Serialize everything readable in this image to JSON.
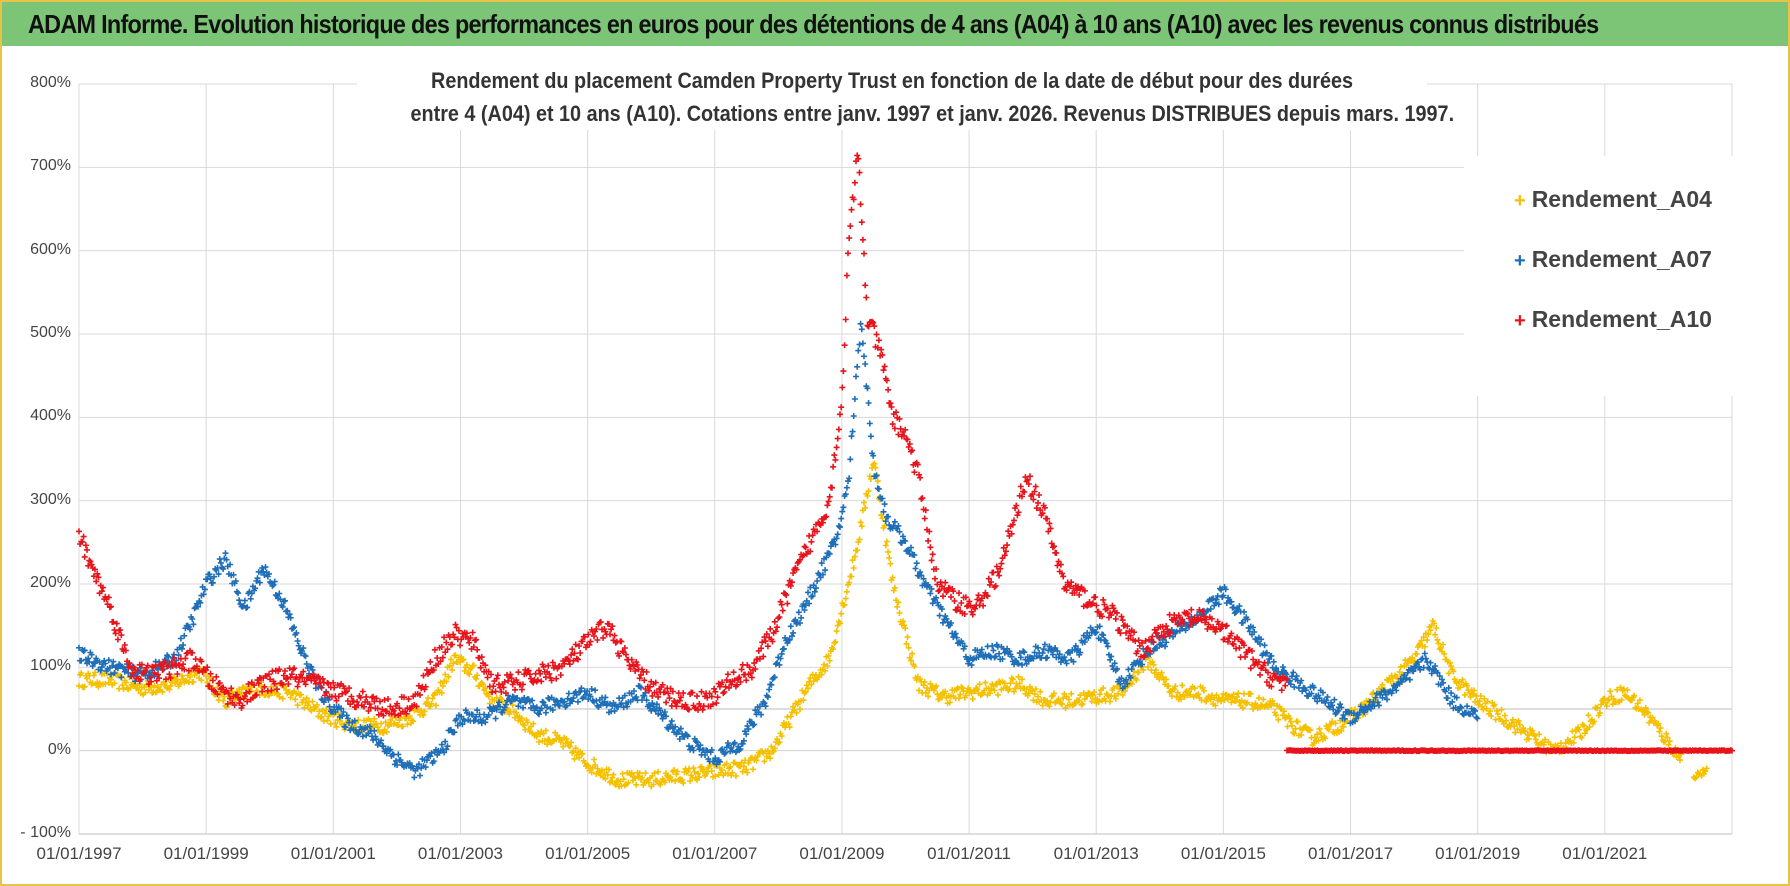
{
  "header": {
    "title": "ADAM Informe. Evolution historique des performances en euros pour des détentions de 4 ans (A04) à 10 ans (A10) avec les revenus connus distribués"
  },
  "chart_data": {
    "type": "scatter",
    "title_line1": "Rendement du placement Camden Property Trust en fonction de la date de début pour des durées",
    "title_line2": "entre 4 (A04) et 10 ans (A10).  Cotations entre janv. 1997 et janv. 2026. Revenus DISTRIBUES depuis mars. 1997.",
    "xlabel": "",
    "ylabel": "",
    "x_range": [
      1997.0,
      2023.0
    ],
    "ylim": [
      -100,
      800
    ],
    "y_ticks": [
      "- 100%",
      "0%",
      "100%",
      "200%",
      "300%",
      "400%",
      "500%",
      "600%",
      "700%",
      "800%"
    ],
    "y_tick_values": [
      -100,
      0,
      100,
      200,
      300,
      400,
      500,
      600,
      700,
      800
    ],
    "x_ticks": [
      "01/01/1997",
      "01/01/1999",
      "01/01/2001",
      "01/01/2003",
      "01/01/2005",
      "01/01/2007",
      "01/01/2009",
      "01/01/2011",
      "01/01/2013",
      "01/01/2015",
      "01/01/2017",
      "01/01/2019",
      "01/01/2021"
    ],
    "x_tick_values": [
      1997,
      1999,
      2001,
      2003,
      2005,
      2007,
      2009,
      2011,
      2013,
      2015,
      2017,
      2019,
      2021
    ],
    "grid": true,
    "legend_position": "top-right",
    "series": [
      {
        "name": "Rendement_A04",
        "color": "#f5c000",
        "x": [
          1997.0,
          1997.5,
          1998.0,
          1998.5,
          1998.9,
          1999.3,
          1999.8,
          2000.3,
          2000.8,
          2001.3,
          2001.8,
          2002.2,
          2002.6,
          2002.9,
          2003.2,
          2003.5,
          2003.8,
          2004.2,
          2004.6,
          2005.0,
          2005.5,
          2006.0,
          2006.5,
          2007.0,
          2007.5,
          2007.9,
          2008.2,
          2008.5,
          2008.8,
          2009.0,
          2009.2,
          2009.5,
          2009.8,
          2010.2,
          2010.6,
          2011.0,
          2011.4,
          2011.8,
          2012.2,
          2012.6,
          2013.0,
          2013.4,
          2013.8,
          2014.2,
          2014.6,
          2015.0,
          2015.4,
          2015.8,
          2016.1,
          2016.4,
          2016.8,
          2017.2,
          2017.6,
          2018.0,
          2018.3,
          2018.6,
          2019.0,
          2019.4,
          2019.8,
          2020.2,
          2020.6,
          2021.0,
          2021.3,
          2021.6,
          2021.9,
          2022.2
        ],
        "values": [
          85,
          85,
          75,
          80,
          95,
          60,
          75,
          70,
          45,
          30,
          30,
          40,
          60,
          110,
          95,
          60,
          50,
          20,
          10,
          -15,
          -35,
          -35,
          -30,
          -25,
          -20,
          0,
          40,
          80,
          110,
          170,
          230,
          350,
          200,
          80,
          65,
          70,
          75,
          80,
          60,
          60,
          65,
          70,
          110,
          70,
          70,
          60,
          60,
          50,
          30,
          15,
          30,
          50,
          80,
          110,
          150,
          90,
          60,
          40,
          20,
          0,
          20,
          60,
          70,
          50,
          20,
          -10
        ],
        "x2": [
          2022.4,
          2022.6
        ],
        "values2": [
          -30,
          -25
        ]
      },
      {
        "name": "Rendement_A07",
        "color": "#1f6fb8",
        "x": [
          1997.0,
          1997.5,
          1998.0,
          1998.5,
          1998.8,
          1999.0,
          1999.3,
          1999.6,
          1999.9,
          2000.2,
          2000.5,
          2000.8,
          2001.2,
          2001.6,
          2002.0,
          2002.3,
          2002.7,
          2003.0,
          2003.4,
          2003.8,
          2004.2,
          2004.6,
          2005.0,
          2005.4,
          2005.8,
          2006.2,
          2006.6,
          2007.0,
          2007.4,
          2007.8,
          2008.1,
          2008.4,
          2008.7,
          2008.9,
          2009.1,
          2009.3,
          2009.5,
          2009.7,
          2010.0,
          2010.3,
          2010.6,
          2011.0,
          2011.4,
          2011.8,
          2012.2,
          2012.6,
          2013.0,
          2013.4,
          2013.8,
          2014.2,
          2014.6,
          2015.0,
          2015.4,
          2015.8,
          2016.2,
          2016.6,
          2017.0,
          2017.4,
          2017.8,
          2018.2,
          2018.6,
          2019.0
        ],
        "values": [
          115,
          100,
          90,
          110,
          160,
          200,
          230,
          170,
          220,
          180,
          120,
          70,
          35,
          20,
          -10,
          -25,
          0,
          40,
          40,
          60,
          50,
          60,
          70,
          50,
          70,
          40,
          10,
          -10,
          10,
          60,
          130,
          170,
          220,
          250,
          320,
          520,
          340,
          280,
          250,
          200,
          160,
          110,
          120,
          110,
          120,
          110,
          150,
          80,
          120,
          140,
          160,
          190,
          150,
          100,
          80,
          60,
          40,
          60,
          80,
          110,
          60,
          40
        ]
      },
      {
        "name": "Rendement_A10",
        "color": "#e8141c",
        "x": [
          1997.0,
          1997.2,
          1997.5,
          1997.8,
          1998.1,
          1998.5,
          1998.8,
          1999.1,
          1999.5,
          1999.9,
          2000.3,
          2000.7,
          2001.1,
          2001.5,
          2001.9,
          2002.3,
          2002.6,
          2002.9,
          2003.2,
          2003.5,
          2003.8,
          2004.2,
          2004.6,
          2005.0,
          2005.3,
          2005.7,
          2006.1,
          2006.5,
          2006.9,
          2007.2,
          2007.6,
          2007.9,
          2008.2,
          2008.5,
          2008.8,
          2009.0,
          2009.1,
          2009.25,
          2009.4,
          2009.6,
          2009.8,
          2010.0,
          2010.2,
          2010.5,
          2010.8,
          2011.1,
          2011.5,
          2011.9,
          2012.2,
          2012.5,
          2012.9,
          2013.3,
          2013.7,
          2014.1,
          2014.5,
          2014.9,
          2015.3,
          2015.7,
          2016.0
        ],
        "values": [
          260,
          220,
          170,
          100,
          90,
          100,
          110,
          80,
          60,
          80,
          90,
          80,
          70,
          60,
          50,
          60,
          110,
          140,
          130,
          80,
          80,
          90,
          100,
          130,
          150,
          100,
          70,
          60,
          60,
          80,
          100,
          140,
          200,
          250,
          300,
          420,
          600,
          720,
          520,
          480,
          400,
          380,
          330,
          200,
          180,
          170,
          220,
          330,
          280,
          200,
          180,
          160,
          120,
          150,
          160,
          150,
          120,
          90,
          80
        ],
        "x2": [
          2016.0,
          2016.8,
          2017.6,
          2018.4,
          2019.2,
          2020.0,
          2020.8,
          2021.6,
          2022.4,
          2023.0
        ],
        "values2": [
          0,
          0,
          0,
          0,
          0,
          0,
          0,
          0,
          0,
          0
        ]
      }
    ]
  }
}
